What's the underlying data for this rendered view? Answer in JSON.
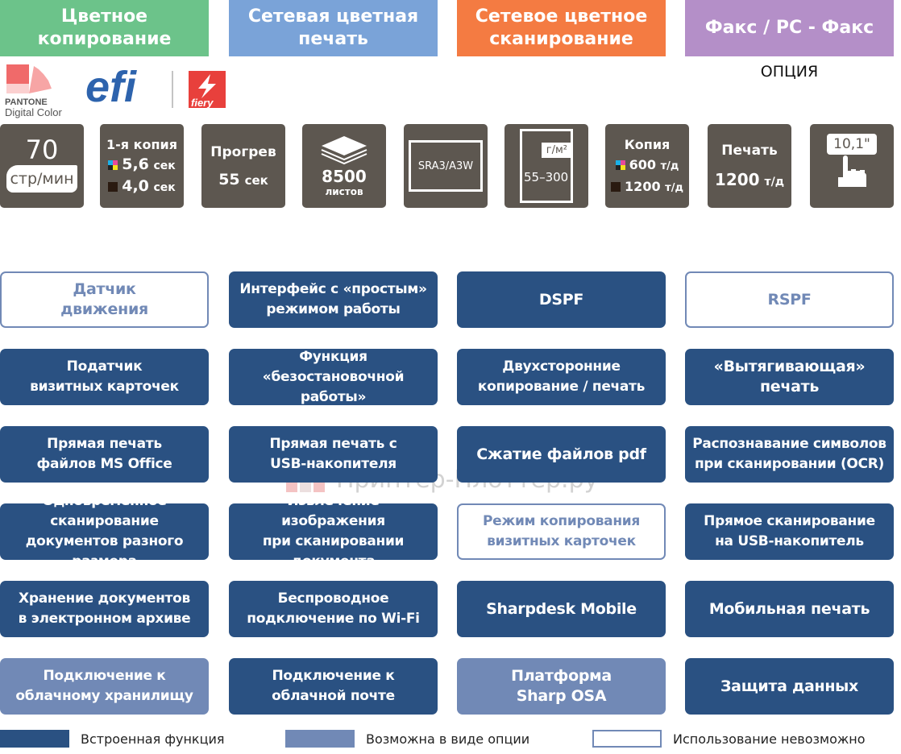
{
  "headers": [
    {
      "label": "Цветное\nкопирование",
      "color": "#6cc38a"
    },
    {
      "label": "Сетевая цветная\nпечать",
      "color": "#7aa3d8"
    },
    {
      "label": "Сетевое цветное\nсканирование",
      "color": "#f47b42"
    },
    {
      "label": "Факс / PC - Факс",
      "color": "#b48fc8"
    }
  ],
  "option_note": "ОПЦИЯ",
  "logos": {
    "pantone": "PANTONE",
    "pantone_sub": "Digital Color",
    "efi": "efi",
    "fiery": "fiery"
  },
  "specs": {
    "speed": {
      "value": "70",
      "unit": "стр/мин"
    },
    "first_copy": {
      "title": "1-я копия",
      "color": "5,6",
      "bw": "4,0",
      "unit": "сек"
    },
    "warmup": {
      "title": "Прогрев",
      "value": "55",
      "unit": "сек"
    },
    "paper": {
      "value": "8500",
      "unit": "листов"
    },
    "size": {
      "value": "SRA3/A3W"
    },
    "weight": {
      "unit": "г/м²",
      "value": "55–300"
    },
    "copy_res": {
      "title": "Копия",
      "color": "600",
      "bw": "1200",
      "unit": "т/д"
    },
    "print_res": {
      "title": "Печать",
      "value": "1200",
      "unit": "т/д"
    },
    "screen": {
      "value": "10,1\""
    }
  },
  "features": [
    {
      "label": "Датчик\nдвижения",
      "status": "none"
    },
    {
      "label": "Интерфейс с «простым»\nрежимом работы",
      "status": "builtin"
    },
    {
      "label": "DSPF",
      "status": "builtin"
    },
    {
      "label": "RSPF",
      "status": "none"
    },
    {
      "label": "Податчик\nвизитных карточек",
      "status": "builtin"
    },
    {
      "label": "Функция\n«безостановочной работы»",
      "status": "builtin"
    },
    {
      "label": "Двухсторонние\nкопирование / печать",
      "status": "builtin"
    },
    {
      "label": "«Вытягивающая»\nпечать",
      "status": "builtin"
    },
    {
      "label": "Прямая печать\nфайлов MS Office",
      "status": "builtin"
    },
    {
      "label": "Прямая печать с\nUSB-накопителя",
      "status": "builtin"
    },
    {
      "label": "Сжатие файлов pdf",
      "status": "builtin"
    },
    {
      "label": "Распознавание символов\nпри сканировании (OCR)",
      "status": "builtin"
    },
    {
      "label": "Одновременное сканирование\nдокументов разного размера",
      "status": "builtin"
    },
    {
      "label": "Извлечение изображения\nпри сканировании документа",
      "status": "builtin"
    },
    {
      "label": "Режим копирования\nвизитных карточек",
      "status": "none"
    },
    {
      "label": "Прямое сканирование\nна  USB-накопитель",
      "status": "builtin"
    },
    {
      "label": "Хранение документов\nв электронном архиве",
      "status": "builtin"
    },
    {
      "label": "Беспроводное\nподключение по Wi-Fi",
      "status": "builtin"
    },
    {
      "label": "Sharpdesk Mobile",
      "status": "builtin"
    },
    {
      "label": "Мобильная печать",
      "status": "builtin"
    },
    {
      "label": "Подключение к\nоблачному хранилищу",
      "status": "option"
    },
    {
      "label": "Подключение к\nоблачной почте",
      "status": "builtin"
    },
    {
      "label": "Платформа\nSharp OSA",
      "status": "option"
    },
    {
      "label": "Защита данных",
      "status": "builtin"
    }
  ],
  "legend": [
    {
      "label": "Встроенная функция",
      "status": "builtin"
    },
    {
      "label": "Возможна в виде опции",
      "status": "option"
    },
    {
      "label": "Использование невозможно",
      "status": "none"
    }
  ],
  "watermark": "Принтер-Плоттер.ру"
}
